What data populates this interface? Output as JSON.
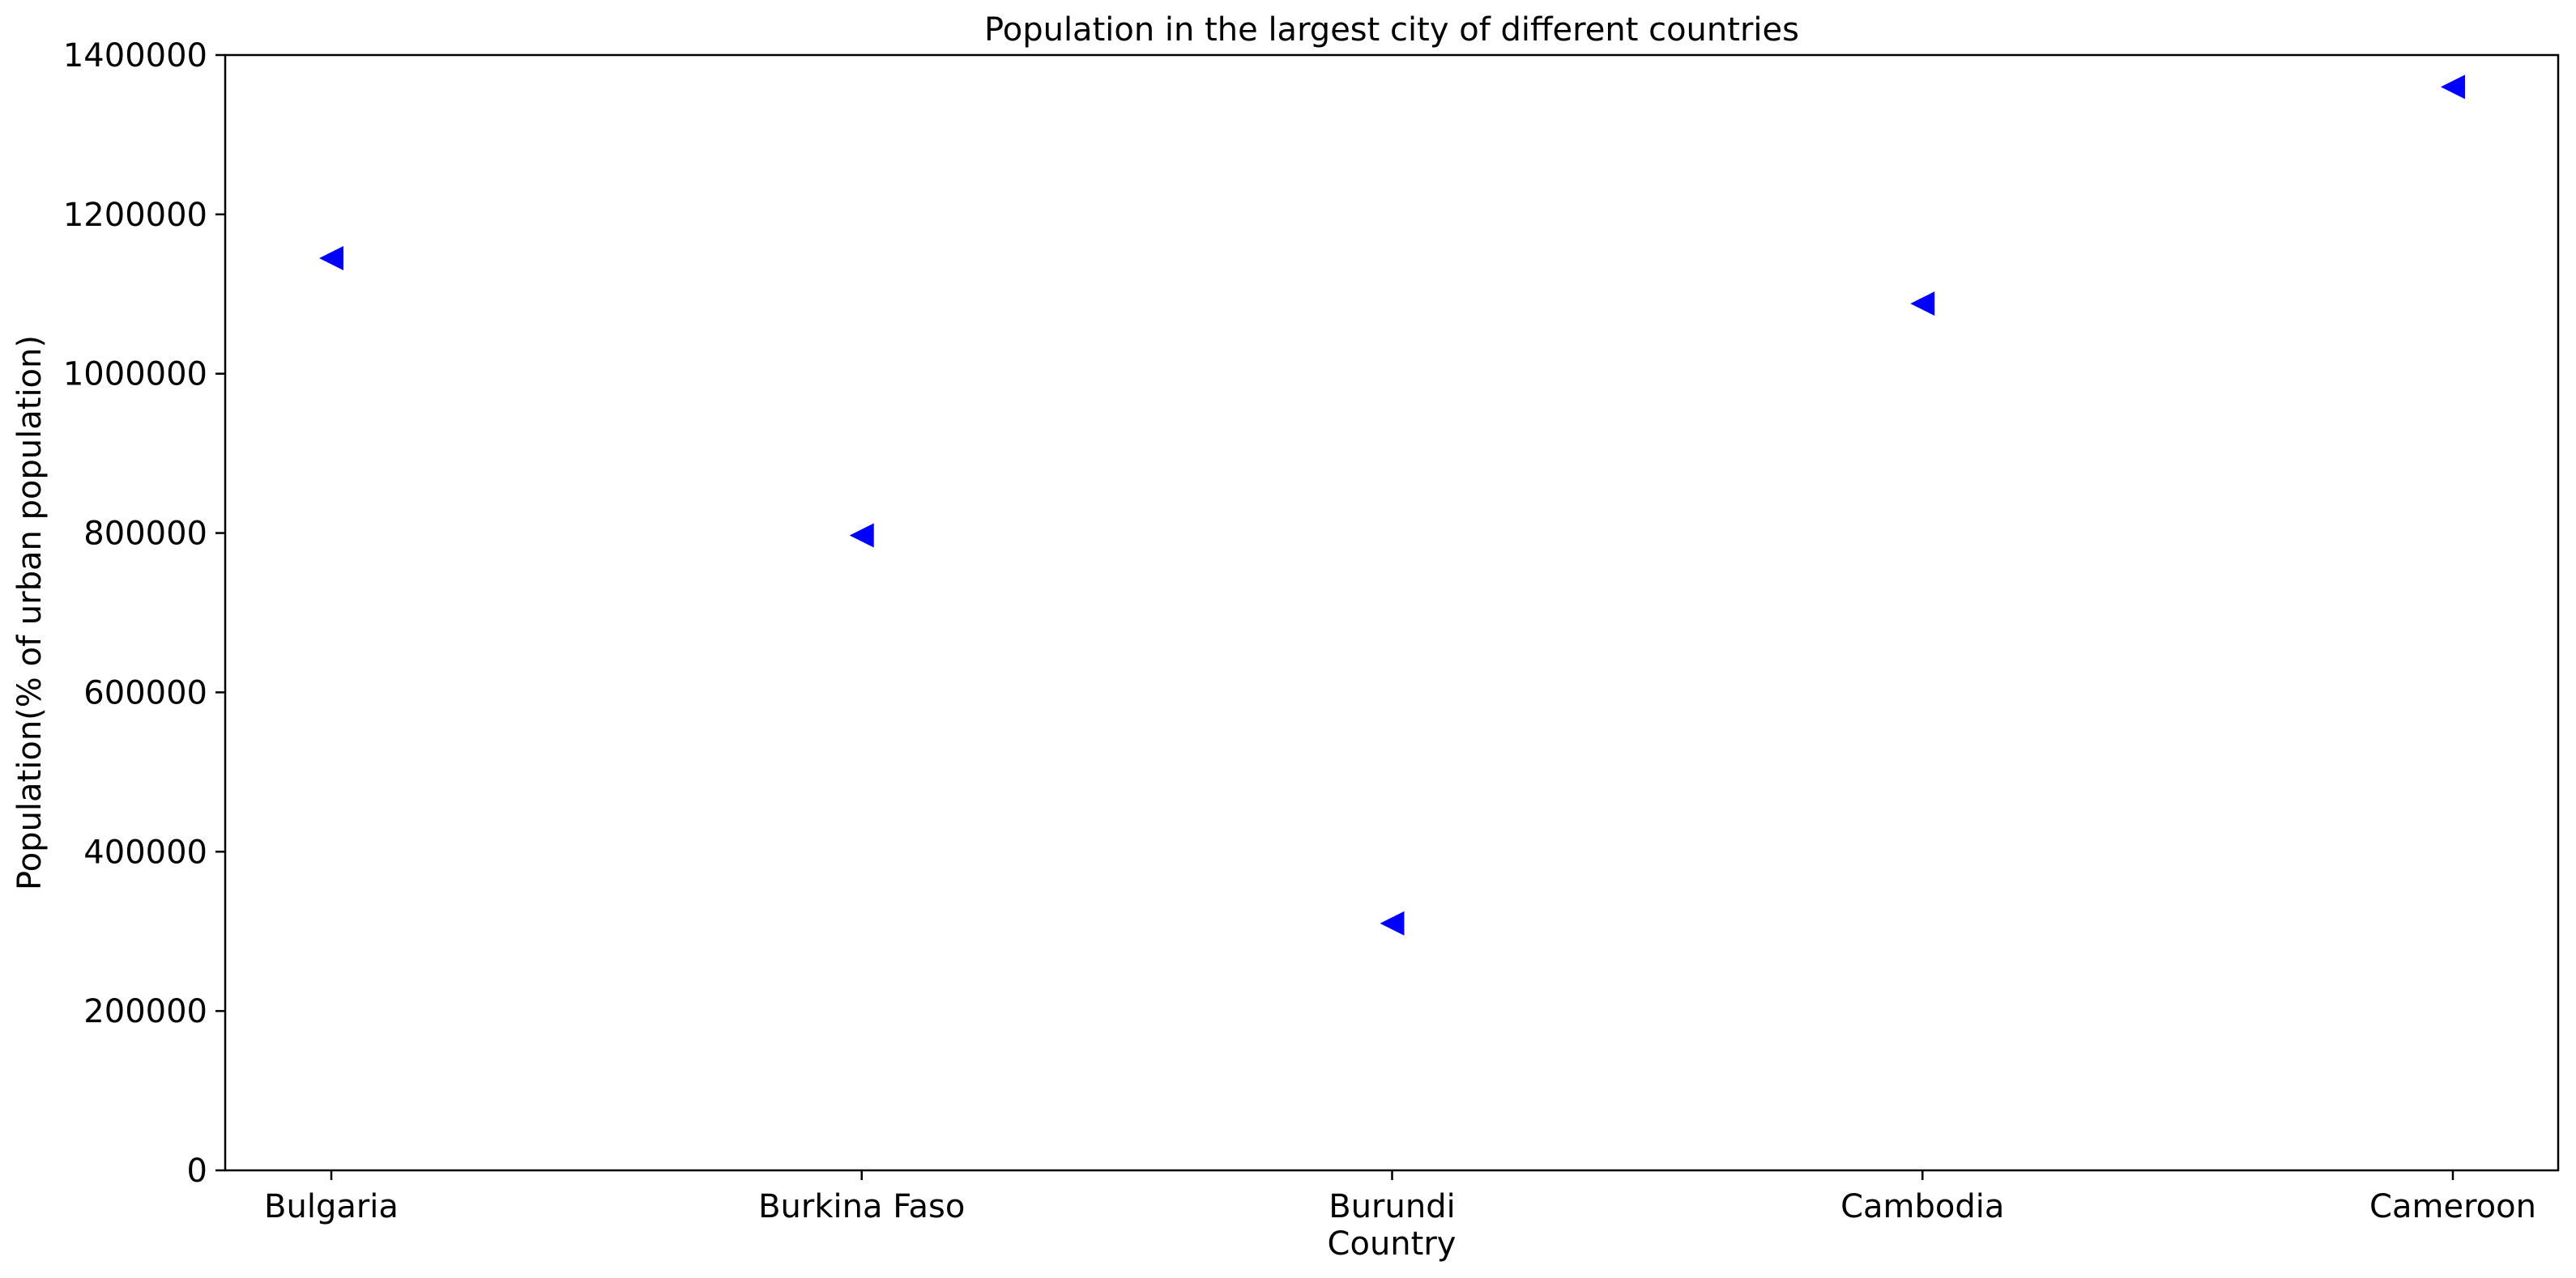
{
  "chart_data": {
    "type": "scatter",
    "title": "Population in the largest city of different countries",
    "xlabel": "Country",
    "ylabel": "Population(% of urban population)",
    "categories": [
      "Bulgaria",
      "Burkina Faso",
      "Burundi",
      "Cambodia",
      "Cameroon"
    ],
    "values": [
      1145000,
      797000,
      310000,
      1088000,
      1360000
    ],
    "ylim": [
      0,
      1400000
    ],
    "yticks": [
      0,
      200000,
      400000,
      600000,
      800000,
      1000000,
      1200000,
      1400000
    ],
    "ytick_labels": [
      "0",
      "200000",
      "400000",
      "600000",
      "800000",
      "1000000",
      "1200000",
      "1400000"
    ],
    "marker": "triangle-left",
    "color": "#0000ff",
    "grid": false,
    "legend": "none"
  }
}
